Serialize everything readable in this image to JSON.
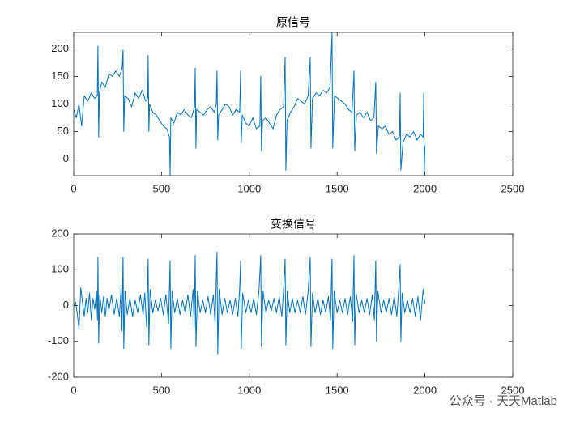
{
  "chart_data": [
    {
      "type": "line",
      "title": "原信号",
      "color": "#0072BD",
      "xlim": [
        0,
        2500
      ],
      "xticks": [
        0,
        500,
        1000,
        1500,
        2000,
        2500
      ],
      "ylim": [
        -30,
        230
      ],
      "yticks": [
        0,
        50,
        100,
        150,
        200
      ],
      "x": [
        0,
        15,
        30,
        45,
        60,
        80,
        100,
        120,
        134,
        138,
        142,
        146,
        160,
        180,
        200,
        220,
        240,
        260,
        276,
        281,
        285,
        290,
        310,
        330,
        350,
        370,
        390,
        410,
        421,
        424,
        428,
        432,
        450,
        470,
        490,
        510,
        530,
        545,
        549,
        553,
        570,
        590,
        610,
        630,
        650,
        670,
        688,
        692,
        696,
        700,
        720,
        740,
        760,
        780,
        800,
        812,
        816,
        820,
        825,
        845,
        865,
        885,
        905,
        925,
        945,
        950,
        954,
        960,
        980,
        1000,
        1020,
        1040,
        1060,
        1065,
        1069,
        1075,
        1095,
        1115,
        1135,
        1155,
        1175,
        1195,
        1204,
        1208,
        1215,
        1235,
        1255,
        1275,
        1295,
        1315,
        1335,
        1347,
        1351,
        1360,
        1380,
        1400,
        1420,
        1440,
        1460,
        1471,
        1475,
        1485,
        1505,
        1525,
        1545,
        1565,
        1585,
        1596,
        1600,
        1610,
        1630,
        1650,
        1670,
        1690,
        1710,
        1720,
        1724,
        1735,
        1755,
        1775,
        1795,
        1815,
        1835,
        1855,
        1859,
        1863,
        1875,
        1895,
        1915,
        1935,
        1955,
        1975,
        1990,
        1993,
        1996,
        2000
      ],
      "values": [
        90,
        75,
        100,
        60,
        115,
        105,
        120,
        110,
        115,
        205,
        40,
        120,
        140,
        130,
        155,
        150,
        160,
        150,
        165,
        198,
        50,
        115,
        110,
        95,
        120,
        110,
        125,
        105,
        110,
        188,
        50,
        100,
        85,
        80,
        70,
        60,
        55,
        40,
        -30,
        75,
        65,
        85,
        80,
        90,
        80,
        75,
        95,
        165,
        20,
        90,
        85,
        80,
        90,
        95,
        85,
        100,
        160,
        35,
        80,
        90,
        100,
        95,
        80,
        90,
        85,
        160,
        30,
        80,
        65,
        60,
        75,
        55,
        60,
        150,
        15,
        70,
        75,
        65,
        55,
        80,
        90,
        95,
        185,
        -20,
        70,
        85,
        95,
        110,
        105,
        100,
        115,
        185,
        20,
        110,
        120,
        115,
        125,
        120,
        130,
        230,
        20,
        115,
        110,
        105,
        100,
        90,
        85,
        160,
        15,
        80,
        85,
        75,
        85,
        70,
        75,
        140,
        10,
        60,
        55,
        60,
        45,
        50,
        35,
        40,
        120,
        -20,
        30,
        45,
        40,
        50,
        35,
        45,
        40,
        120,
        -30,
        25
      ]
    },
    {
      "type": "line",
      "title": "变换信号",
      "color": "#0072BD",
      "xlim": [
        0,
        2500
      ],
      "xticks": [
        0,
        500,
        1000,
        1500,
        2000,
        2500
      ],
      "ylim": [
        -200,
        200
      ],
      "yticks": [
        -200,
        -100,
        0,
        100,
        200
      ],
      "x": [
        0,
        10,
        20,
        30,
        40,
        50,
        60,
        70,
        80,
        90,
        100,
        110,
        120,
        130,
        135,
        138,
        142,
        148,
        160,
        170,
        180,
        190,
        200,
        215,
        230,
        245,
        260,
        270,
        275,
        281,
        285,
        292,
        305,
        320,
        335,
        350,
        365,
        380,
        395,
        405,
        415,
        424,
        428,
        435,
        450,
        465,
        480,
        495,
        510,
        525,
        540,
        549,
        553,
        560,
        575,
        590,
        605,
        620,
        635,
        650,
        665,
        680,
        686,
        692,
        696,
        705,
        720,
        735,
        750,
        765,
        780,
        795,
        805,
        816,
        820,
        828,
        845,
        860,
        875,
        890,
        905,
        920,
        935,
        944,
        950,
        954,
        962,
        980,
        995,
        1010,
        1025,
        1040,
        1055,
        1065,
        1069,
        1078,
        1095,
        1110,
        1125,
        1140,
        1155,
        1170,
        1185,
        1195,
        1204,
        1208,
        1216,
        1230,
        1245,
        1260,
        1275,
        1290,
        1305,
        1320,
        1335,
        1347,
        1351,
        1360,
        1375,
        1390,
        1405,
        1420,
        1435,
        1450,
        1462,
        1471,
        1475,
        1483,
        1500,
        1515,
        1530,
        1545,
        1560,
        1575,
        1588,
        1596,
        1600,
        1608,
        1625,
        1640,
        1655,
        1670,
        1685,
        1700,
        1712,
        1720,
        1724,
        1732,
        1750,
        1765,
        1780,
        1795,
        1810,
        1825,
        1840,
        1850,
        1859,
        1863,
        1870,
        1885,
        1900,
        1915,
        1930,
        1945,
        1960,
        1975,
        1990,
        2000
      ],
      "values": [
        0,
        10,
        -20,
        -65,
        50,
        10,
        -30,
        20,
        -20,
        35,
        -40,
        20,
        -10,
        40,
        -40,
        135,
        -105,
        30,
        -20,
        25,
        -30,
        20,
        -15,
        30,
        -25,
        20,
        -30,
        50,
        -70,
        135,
        -120,
        40,
        -25,
        20,
        -30,
        15,
        -20,
        30,
        -25,
        35,
        -60,
        130,
        -110,
        45,
        -20,
        15,
        -15,
        20,
        -25,
        30,
        -50,
        125,
        -120,
        40,
        -20,
        20,
        -25,
        15,
        -20,
        30,
        -30,
        45,
        -60,
        140,
        -115,
        40,
        -20,
        15,
        -20,
        25,
        -25,
        30,
        -50,
        150,
        -135,
        45,
        -25,
        20,
        -20,
        15,
        -25,
        20,
        -30,
        40,
        125,
        -120,
        35,
        -20,
        15,
        -20,
        20,
        -25,
        40,
        140,
        -115,
        40,
        -20,
        15,
        -15,
        20,
        -20,
        25,
        -30,
        45,
        130,
        -110,
        40,
        -20,
        20,
        -20,
        15,
        -20,
        25,
        -25,
        40,
        135,
        -115,
        35,
        -20,
        20,
        -25,
        15,
        -20,
        25,
        -40,
        130,
        -120,
        40,
        -20,
        15,
        -20,
        20,
        -25,
        25,
        -45,
        140,
        -110,
        35,
        -20,
        15,
        -20,
        20,
        -25,
        30,
        -40,
        125,
        -100,
        40,
        -20,
        15,
        -20,
        20,
        -25,
        25,
        -30,
        40,
        115,
        -100,
        35,
        -20,
        15,
        -20,
        20,
        -30,
        25,
        -40,
        45,
        5
      ]
    }
  ],
  "watermark": "公众号 · 天天Matlab"
}
